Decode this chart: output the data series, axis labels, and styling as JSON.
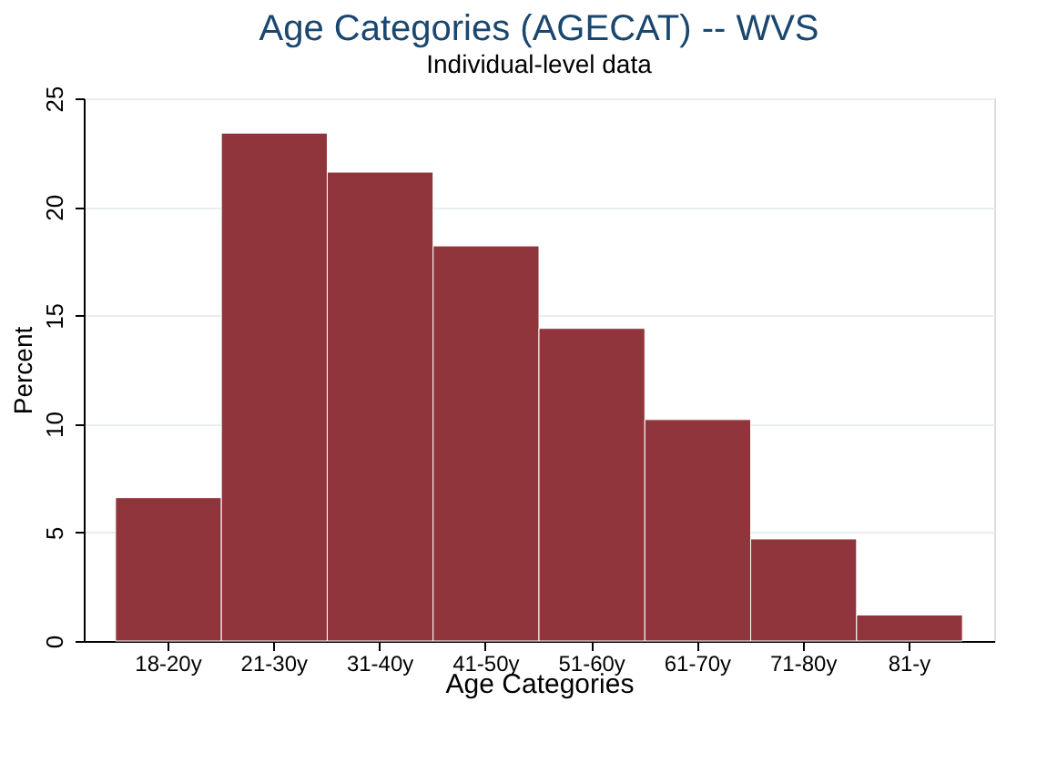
{
  "chart_data": {
    "type": "bar",
    "title": "Age Categories (AGECAT) -- WVS",
    "subtitle": "Individual-level data",
    "xlabel": "Age Categories",
    "ylabel": "Percent",
    "categories": [
      "18-20y",
      "21-30y",
      "31-40y",
      "41-50y",
      "51-60y",
      "61-70y",
      "71-80y",
      "81-y"
    ],
    "values": [
      6.6,
      23.4,
      21.6,
      18.2,
      14.4,
      10.2,
      4.7,
      1.2
    ],
    "color": "#8f353b",
    "ylim": [
      0,
      25
    ],
    "yticks": [
      0,
      5,
      10,
      15,
      20,
      25
    ],
    "grid": "y"
  }
}
